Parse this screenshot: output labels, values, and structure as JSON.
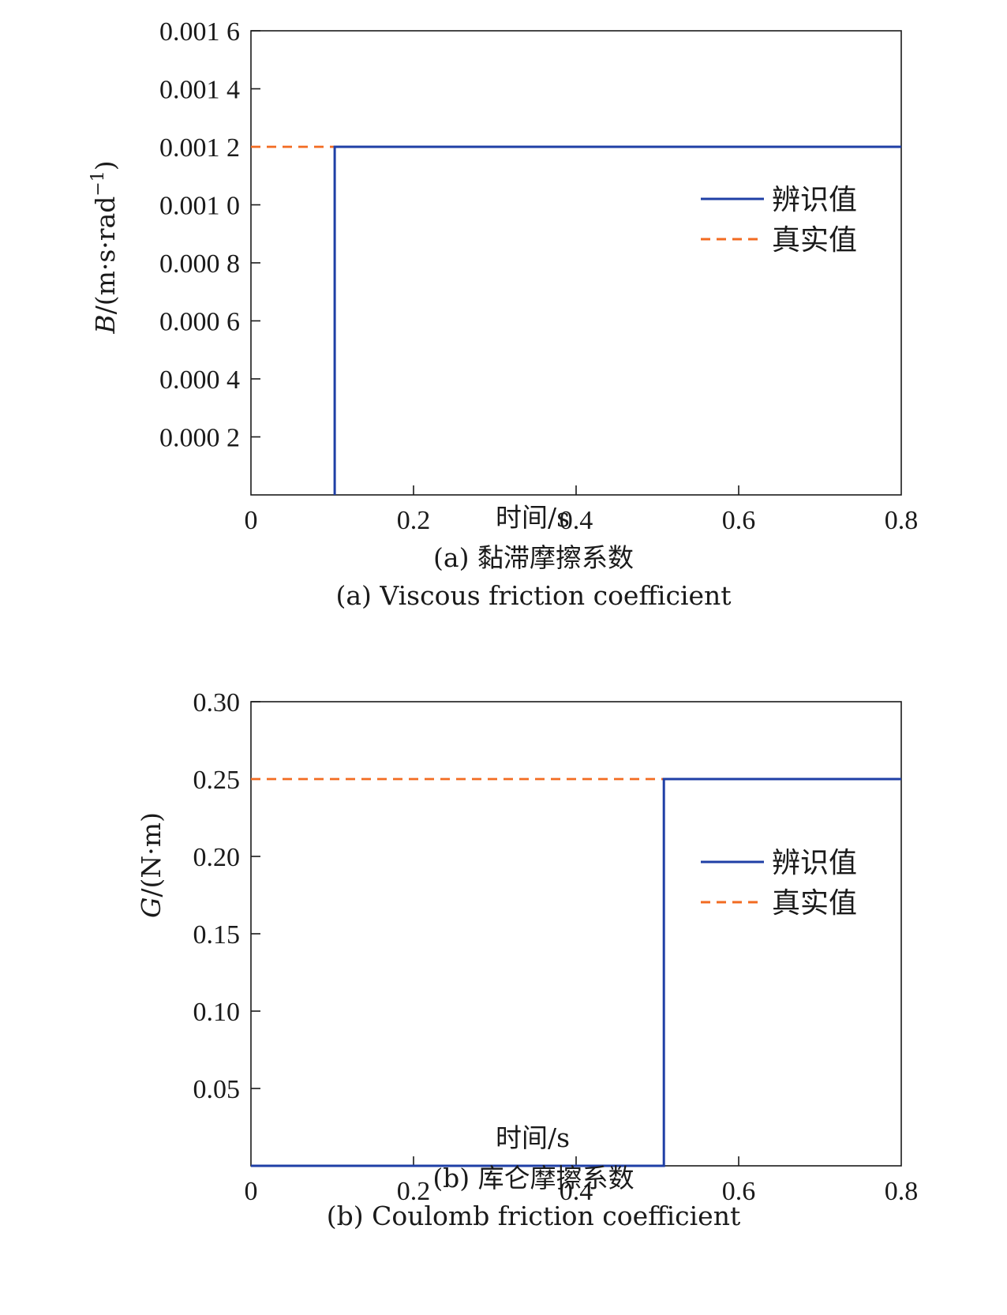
{
  "chart_data": [
    {
      "type": "line",
      "xlabel": "时间/s",
      "ylabel": "B/(m·s·rad⁻¹)",
      "caption_cn": "(a) 黏滞摩擦系数",
      "caption_en": "(a) Viscous friction coefficient",
      "xlim": [
        0,
        0.8
      ],
      "ylim": [
        0,
        0.0016
      ],
      "xticks": [
        0,
        0.2,
        0.4,
        0.6,
        0.8
      ],
      "xtick_labels": [
        "0",
        "0.2",
        "0.4",
        "0.6",
        "0.8"
      ],
      "yticks": [
        0.0002,
        0.0004,
        0.0006,
        0.0008,
        0.001,
        0.0012,
        0.0014,
        0.0016
      ],
      "ytick_labels": [
        "0.000 2",
        "0.000 4",
        "0.000 6",
        "0.000 8",
        "0.001 0",
        "0.001 2",
        "0.001 4",
        "0.001 6"
      ],
      "grid": false,
      "legend_position": "right",
      "series": [
        {
          "name": "辨识值",
          "style": "solid",
          "color": "#1f3fa6",
          "points": [
            [
              0.103,
              0
            ],
            [
              0.103,
              0.0012
            ],
            [
              0.8,
              0.0012
            ]
          ]
        },
        {
          "name": "真实值",
          "style": "dashed",
          "color": "#f26b21",
          "points": [
            [
              0,
              0.0012
            ],
            [
              0.8,
              0.0012
            ]
          ]
        }
      ]
    },
    {
      "type": "line",
      "xlabel": "时间/s",
      "ylabel": "G/(N·m)",
      "caption_cn": "(b) 库仑摩擦系数",
      "caption_en": "(b) Coulomb friction coefficient",
      "xlim": [
        0,
        0.8
      ],
      "ylim": [
        0,
        0.3
      ],
      "xticks": [
        0,
        0.2,
        0.4,
        0.6,
        0.8
      ],
      "xtick_labels": [
        "0",
        "0.2",
        "0.4",
        "0.6",
        "0.8"
      ],
      "yticks": [
        0.05,
        0.1,
        0.15,
        0.2,
        0.25,
        0.3
      ],
      "ytick_labels": [
        "0.05",
        "0.10",
        "0.15",
        "0.20",
        "0.25",
        "0.30"
      ],
      "grid": false,
      "legend_position": "right",
      "series": [
        {
          "name": "辨识值",
          "style": "solid",
          "color": "#1f3fa6",
          "points": [
            [
              0,
              0
            ],
            [
              0.508,
              0
            ],
            [
              0.508,
              0.25
            ],
            [
              0.8,
              0.25
            ]
          ]
        },
        {
          "name": "真实值",
          "style": "dashed",
          "color": "#f26b21",
          "points": [
            [
              0,
              0.25
            ],
            [
              0.8,
              0.25
            ]
          ]
        }
      ]
    }
  ]
}
